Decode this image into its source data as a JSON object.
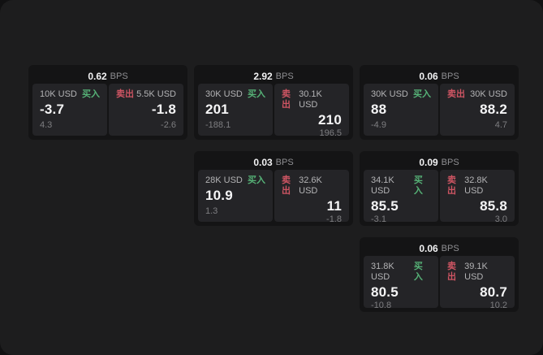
{
  "labels": {
    "bps_unit": "BPS",
    "buy": "买入",
    "sell": "卖出"
  },
  "colors": {
    "page_background": "#1d1d1e",
    "card_background": "#141415",
    "panel_background": "#242427",
    "buy_green": "#56b277",
    "sell_red": "#ce5563"
  },
  "cards": [
    {
      "bps": "0.62",
      "buy": {
        "amount": "10K USD",
        "price": "-3.7",
        "change": "4.3"
      },
      "sell": {
        "amount": "5.5K USD",
        "price": "-1.8",
        "change": "-2.6"
      }
    },
    {
      "bps": "2.92",
      "buy": {
        "amount": "30K USD",
        "price": "201",
        "change": "-188.1"
      },
      "sell": {
        "amount": "30.1K USD",
        "price": "210",
        "change": "196.5"
      }
    },
    {
      "bps": "0.06",
      "buy": {
        "amount": "30K USD",
        "price": "88",
        "change": "-4.9"
      },
      "sell": {
        "amount": "30K USD",
        "price": "88.2",
        "change": "4.7"
      }
    },
    {
      "bps": "0.03",
      "buy": {
        "amount": "28K USD",
        "price": "10.9",
        "change": "1.3"
      },
      "sell": {
        "amount": "32.6K USD",
        "price": "11",
        "change": "-1.8"
      }
    },
    {
      "bps": "0.09",
      "buy": {
        "amount": "34.1K USD",
        "price": "85.5",
        "change": "-3.1"
      },
      "sell": {
        "amount": "32.8K USD",
        "price": "85.8",
        "change": "3.0"
      }
    },
    {
      "bps": "0.06",
      "buy": {
        "amount": "31.8K USD",
        "price": "80.5",
        "change": "-10.8"
      },
      "sell": {
        "amount": "39.1K USD",
        "price": "80.7",
        "change": "10.2"
      }
    }
  ]
}
